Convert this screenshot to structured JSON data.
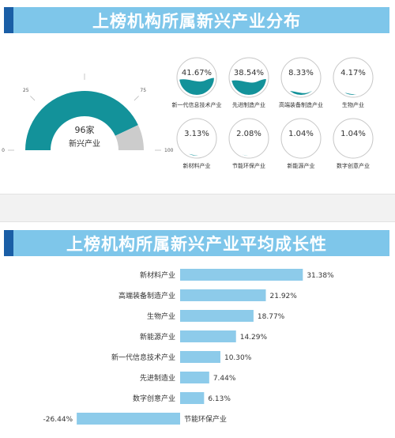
{
  "panel1": {
    "title": "上榜机构所属新兴产业分布",
    "gauge": {
      "scale": [
        0,
        25,
        50,
        75,
        100
      ],
      "value_pct": 86,
      "count_label": "96家",
      "sub_label": "新兴产业",
      "fill_color": "#13929a",
      "rest_color": "#cccccc"
    },
    "tiles": [
      {
        "pct": "41.67%",
        "label": "新一代信息技术产业",
        "value": 41.67
      },
      {
        "pct": "38.54%",
        "label": "先进制造产业",
        "value": 38.54
      },
      {
        "pct": "8.33%",
        "label": "高端装备制造产业",
        "value": 8.33
      },
      {
        "pct": "4.17%",
        "label": "生物产业",
        "value": 4.17
      },
      {
        "pct": "3.13%",
        "label": "新材料产业",
        "value": 3.13
      },
      {
        "pct": "2.08%",
        "label": "节能环保产业",
        "value": 2.08
      },
      {
        "pct": "1.04%",
        "label": "新能源产业",
        "value": 1.04
      },
      {
        "pct": "1.04%",
        "label": "数字创意产业",
        "value": 1.04
      }
    ]
  },
  "panel2": {
    "title": "上榜机构所属新兴产业平均成长性"
  },
  "chart_data": {
    "type": "bar",
    "orientation": "horizontal",
    "categories": [
      "新材料产业",
      "高端装备制造产业",
      "生物产业",
      "新能源产业",
      "新一代信息技术产业",
      "先进制造业",
      "数字创意产业",
      "节能环保产业"
    ],
    "values": [
      31.38,
      21.92,
      18.77,
      14.29,
      10.3,
      7.44,
      6.13,
      -26.44
    ],
    "value_labels": [
      "31.38%",
      "21.92%",
      "18.77%",
      "14.29%",
      "10.30%",
      "7.44%",
      "6.13%",
      "-26.44%"
    ],
    "bar_color": "#8dcbea"
  }
}
